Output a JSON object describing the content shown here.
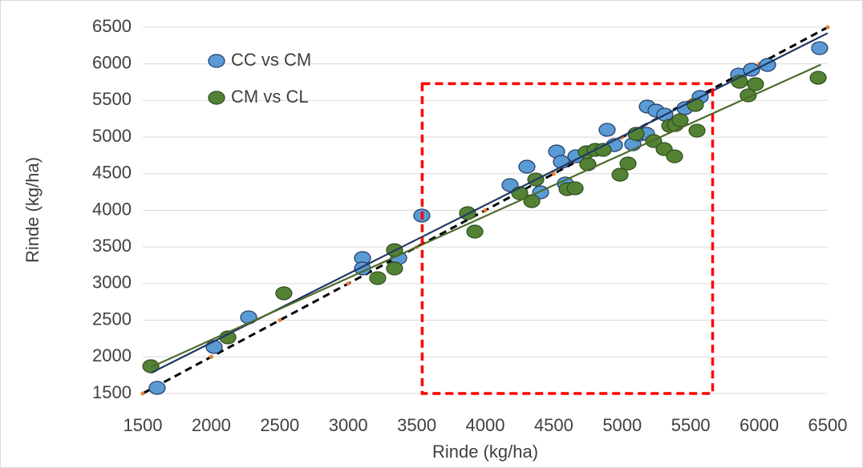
{
  "chart_data": {
    "type": "scatter",
    "x_label": "Rinde (kg/ha)",
    "y_label": "Rinde (kg/ha)",
    "xlim": [
      1500,
      6500
    ],
    "ylim": [
      1500,
      6500
    ],
    "xticks": [
      1500,
      2000,
      2500,
      3000,
      3500,
      4000,
      4500,
      5000,
      5500,
      6000,
      6500
    ],
    "yticks": [
      1500,
      2000,
      2500,
      3000,
      3500,
      4000,
      4500,
      5000,
      5500,
      6000,
      6500
    ],
    "grid": true,
    "legend": "top-left",
    "series": [
      {
        "name": "CC vs CM",
        "color": "#5b9bd5",
        "edge_color": "#1f3864",
        "trend_color": "#203864",
        "x": [
          1605,
          2021,
          2273,
          3104,
          3104,
          3368,
          3537,
          4181,
          4304,
          4404,
          4521,
          4556,
          4585,
          4662,
          4890,
          4943,
          5077,
          5124,
          5177,
          5183,
          5247,
          5311,
          5458,
          5569,
          5850,
          5944,
          6061,
          6441
        ],
        "values": [
          1577,
          2135,
          2540,
          3349,
          3207,
          3349,
          3929,
          4345,
          4596,
          4246,
          4804,
          4662,
          4367,
          4739,
          5100,
          4892,
          4903,
          5034,
          5045,
          5417,
          5362,
          5307,
          5395,
          5548,
          5854,
          5920,
          5986,
          6215
        ],
        "trend_x": [
          1560,
          6500
        ],
        "trend_y": [
          1780,
          6420
        ]
      },
      {
        "name": "CM vs CL",
        "color": "#548235",
        "edge_color": "#2e4d1c",
        "trend_color": "#4a6b2a",
        "x": [
          1559,
          2121,
          2530,
          3215,
          3338,
          3338,
          3871,
          3924,
          4252,
          4369,
          4340,
          4598,
          4656,
          4749,
          4738,
          4803,
          4861,
          4984,
          5042,
          5101,
          5229,
          5306,
          5347,
          5388,
          5423,
          5382,
          5534,
          5546,
          5856,
          5920,
          5973,
          6430
        ],
        "values": [
          1872,
          2266,
          2868,
          3075,
          3458,
          3207,
          3962,
          3710,
          4235,
          4421,
          4126,
          4290,
          4301,
          4629,
          4793,
          4826,
          4826,
          4487,
          4640,
          5045,
          4946,
          4837,
          5154,
          5165,
          5231,
          4738,
          5439,
          5088,
          5756,
          5570,
          5723,
          5811
        ],
        "trend_x": [
          1560,
          6450
        ],
        "trend_y": [
          1860,
          5990
        ]
      }
    ],
    "reference": {
      "color": "#000000",
      "point_color": "#ed7d31",
      "x": [
        1500,
        2000,
        2500,
        3000,
        3500,
        4000,
        4500,
        5000,
        5500,
        6000,
        6500
      ],
      "values": [
        1500,
        2000,
        2500,
        3000,
        3500,
        4000,
        4500,
        5000,
        5500,
        6000,
        6500
      ]
    },
    "highlight_box": {
      "color": "#ff0000",
      "xlim": [
        3540,
        5660
      ],
      "ylim": [
        1500,
        5730
      ]
    }
  }
}
